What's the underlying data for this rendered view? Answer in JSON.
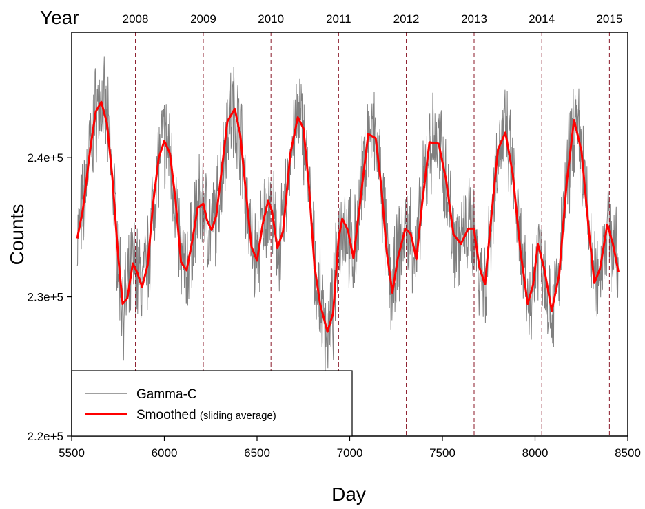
{
  "chart_data": {
    "type": "line",
    "xlabel": "Day",
    "ylabel": "Counts",
    "top_axis_title": "Year",
    "xlim": [
      5500,
      8500
    ],
    "ylim": [
      220000,
      249000
    ],
    "x_ticks": [
      5500,
      6000,
      6500,
      7000,
      7500,
      8000,
      8500
    ],
    "x_tick_labels": [
      "5500",
      "6000",
      "6500",
      "7000",
      "7500",
      "8000",
      "8500"
    ],
    "y_ticks": [
      220000,
      230000,
      240000
    ],
    "y_tick_labels": [
      "2.2e+5",
      "2.3e+5",
      "2.4e+5"
    ],
    "year_markers": [
      {
        "label": "2008",
        "day": 5844
      },
      {
        "label": "2009",
        "day": 6210
      },
      {
        "label": "2010",
        "day": 6575
      },
      {
        "label": "2011",
        "day": 6940
      },
      {
        "label": "2012",
        "day": 7305
      },
      {
        "label": "2013",
        "day": 7671
      },
      {
        "label": "2014",
        "day": 8036
      },
      {
        "label": "2015",
        "day": 8401
      }
    ],
    "legend": {
      "position": "bottom-left",
      "entries": [
        {
          "name": "Gamma-C",
          "suffix": ""
        },
        {
          "name": "Smoothed",
          "suffix": "(sliding average)"
        }
      ]
    },
    "series": [
      {
        "name": "Smoothed",
        "color": "#ff0000",
        "x": [
          5530,
          5560,
          5600,
          5630,
          5660,
          5690,
          5720,
          5750,
          5775,
          5800,
          5830,
          5855,
          5880,
          5910,
          5940,
          5970,
          6000,
          6030,
          6060,
          6090,
          6120,
          6150,
          6180,
          6210,
          6230,
          6255,
          6280,
          6310,
          6340,
          6380,
          6410,
          6440,
          6470,
          6500,
          6530,
          6560,
          6580,
          6610,
          6640,
          6680,
          6720,
          6750,
          6780,
          6810,
          6840,
          6880,
          6910,
          6940,
          6960,
          6990,
          7020,
          7060,
          7100,
          7140,
          7170,
          7200,
          7230,
          7260,
          7300,
          7330,
          7360,
          7390,
          7430,
          7480,
          7520,
          7560,
          7600,
          7640,
          7670,
          7700,
          7730,
          7760,
          7800,
          7840,
          7880,
          7920,
          7960,
          7990,
          8015,
          8050,
          8090,
          8130,
          8170,
          8210,
          8250,
          8290,
          8320,
          8350,
          8390,
          8420,
          8450
        ],
        "values": [
          234200,
          236200,
          240600,
          243300,
          244000,
          242500,
          238500,
          233000,
          229500,
          229900,
          232400,
          231700,
          230700,
          232300,
          236800,
          240000,
          241200,
          240300,
          237000,
          232500,
          231900,
          234000,
          236400,
          236700,
          235500,
          234800,
          235800,
          239200,
          242600,
          243500,
          241600,
          237500,
          233600,
          232600,
          235200,
          236900,
          236200,
          233500,
          234700,
          240300,
          242900,
          242100,
          238000,
          232200,
          229500,
          227500,
          228800,
          234200,
          235600,
          234800,
          232800,
          237200,
          241700,
          241400,
          238000,
          233200,
          230300,
          232800,
          234900,
          234500,
          232700,
          236600,
          241100,
          241000,
          238400,
          234500,
          233800,
          234900,
          234900,
          232100,
          230900,
          235200,
          240600,
          241800,
          238800,
          233400,
          229500,
          230900,
          233800,
          232000,
          229000,
          231600,
          238100,
          242700,
          240500,
          234800,
          231000,
          232000,
          235200,
          233800,
          231800
        ]
      },
      {
        "name": "Gamma-C",
        "color": "#808080",
        "seed": 7,
        "noise_amplitude": 3000
      }
    ]
  }
}
